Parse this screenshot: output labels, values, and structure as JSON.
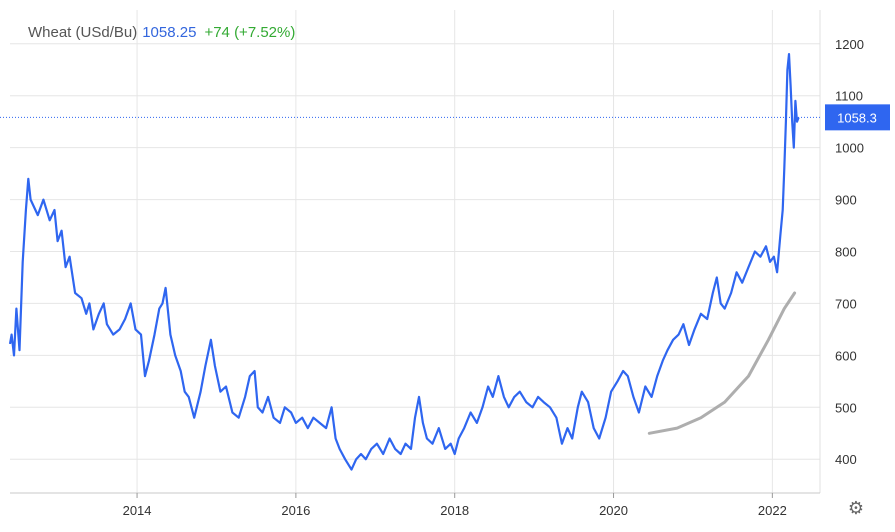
{
  "header": {
    "symbol": "Wheat (USd/Bu)",
    "last": "1058.25",
    "change": "+74 (+7.52%)"
  },
  "colors": {
    "line": "#2f66f0",
    "price_tag_bg": "#2f66f0",
    "trend_annotation": "#a0a0a0",
    "change_positive": "#33aa33",
    "grid": "#e6e6e6"
  },
  "icons": {
    "settings": "gear-icon"
  },
  "chart_data": {
    "type": "line",
    "title": "",
    "xlabel": "",
    "ylabel": "",
    "x_ticks": [
      "2014",
      "2016",
      "2018",
      "2020",
      "2022"
    ],
    "y_ticks": [
      400,
      500,
      600,
      700,
      800,
      900,
      1000,
      1100,
      1200
    ],
    "xlim": [
      2012.4,
      2022.6
    ],
    "ylim": [
      335,
      1265
    ],
    "grid": true,
    "y_axis_side": "right",
    "price_tag": "1058.3",
    "price_line_value": 1058.3,
    "series": [
      {
        "points": [
          [
            2012.4,
            622
          ],
          [
            2012.42,
            640
          ],
          [
            2012.45,
            600
          ],
          [
            2012.48,
            690
          ],
          [
            2012.52,
            610
          ],
          [
            2012.56,
            780
          ],
          [
            2012.6,
            880
          ],
          [
            2012.63,
            940
          ],
          [
            2012.66,
            900
          ],
          [
            2012.75,
            870
          ],
          [
            2012.82,
            900
          ],
          [
            2012.9,
            860
          ],
          [
            2012.96,
            880
          ],
          [
            2013.0,
            820
          ],
          [
            2013.05,
            840
          ],
          [
            2013.1,
            770
          ],
          [
            2013.15,
            790
          ],
          [
            2013.22,
            720
          ],
          [
            2013.3,
            710
          ],
          [
            2013.36,
            680
          ],
          [
            2013.4,
            700
          ],
          [
            2013.45,
            650
          ],
          [
            2013.52,
            680
          ],
          [
            2013.58,
            700
          ],
          [
            2013.62,
            660
          ],
          [
            2013.7,
            640
          ],
          [
            2013.78,
            650
          ],
          [
            2013.85,
            670
          ],
          [
            2013.92,
            700
          ],
          [
            2013.98,
            650
          ],
          [
            2014.05,
            640
          ],
          [
            2014.1,
            560
          ],
          [
            2014.15,
            590
          ],
          [
            2014.22,
            640
          ],
          [
            2014.28,
            690
          ],
          [
            2014.32,
            700
          ],
          [
            2014.36,
            730
          ],
          [
            2014.42,
            640
          ],
          [
            2014.48,
            600
          ],
          [
            2014.55,
            570
          ],
          [
            2014.6,
            530
          ],
          [
            2014.65,
            520
          ],
          [
            2014.72,
            480
          ],
          [
            2014.8,
            530
          ],
          [
            2014.86,
            580
          ],
          [
            2014.93,
            630
          ],
          [
            2014.98,
            580
          ],
          [
            2015.05,
            530
          ],
          [
            2015.12,
            540
          ],
          [
            2015.2,
            490
          ],
          [
            2015.28,
            480
          ],
          [
            2015.36,
            520
          ],
          [
            2015.42,
            560
          ],
          [
            2015.48,
            570
          ],
          [
            2015.52,
            500
          ],
          [
            2015.58,
            490
          ],
          [
            2015.65,
            520
          ],
          [
            2015.72,
            480
          ],
          [
            2015.8,
            470
          ],
          [
            2015.86,
            500
          ],
          [
            2015.94,
            490
          ],
          [
            2016.0,
            470
          ],
          [
            2016.08,
            480
          ],
          [
            2016.15,
            460
          ],
          [
            2016.22,
            480
          ],
          [
            2016.3,
            470
          ],
          [
            2016.38,
            460
          ],
          [
            2016.45,
            500
          ],
          [
            2016.5,
            440
          ],
          [
            2016.55,
            420
          ],
          [
            2016.62,
            400
          ],
          [
            2016.7,
            380
          ],
          [
            2016.76,
            400
          ],
          [
            2016.82,
            410
          ],
          [
            2016.88,
            400
          ],
          [
            2016.95,
            420
          ],
          [
            2017.02,
            430
          ],
          [
            2017.1,
            410
          ],
          [
            2017.18,
            440
          ],
          [
            2017.25,
            420
          ],
          [
            2017.32,
            410
          ],
          [
            2017.38,
            430
          ],
          [
            2017.45,
            420
          ],
          [
            2017.5,
            480
          ],
          [
            2017.55,
            520
          ],
          [
            2017.6,
            470
          ],
          [
            2017.65,
            440
          ],
          [
            2017.72,
            430
          ],
          [
            2017.8,
            460
          ],
          [
            2017.88,
            420
          ],
          [
            2017.95,
            430
          ],
          [
            2018.0,
            410
          ],
          [
            2018.05,
            440
          ],
          [
            2018.12,
            460
          ],
          [
            2018.2,
            490
          ],
          [
            2018.28,
            470
          ],
          [
            2018.35,
            500
          ],
          [
            2018.42,
            540
          ],
          [
            2018.48,
            520
          ],
          [
            2018.55,
            560
          ],
          [
            2018.62,
            520
          ],
          [
            2018.68,
            500
          ],
          [
            2018.75,
            520
          ],
          [
            2018.82,
            530
          ],
          [
            2018.9,
            510
          ],
          [
            2018.98,
            500
          ],
          [
            2019.05,
            520
          ],
          [
            2019.12,
            510
          ],
          [
            2019.2,
            500
          ],
          [
            2019.28,
            480
          ],
          [
            2019.35,
            430
          ],
          [
            2019.42,
            460
          ],
          [
            2019.48,
            440
          ],
          [
            2019.55,
            500
          ],
          [
            2019.6,
            530
          ],
          [
            2019.68,
            510
          ],
          [
            2019.75,
            460
          ],
          [
            2019.82,
            440
          ],
          [
            2019.9,
            480
          ],
          [
            2019.97,
            530
          ],
          [
            2020.05,
            550
          ],
          [
            2020.12,
            570
          ],
          [
            2020.18,
            560
          ],
          [
            2020.25,
            520
          ],
          [
            2020.32,
            490
          ],
          [
            2020.4,
            540
          ],
          [
            2020.48,
            520
          ],
          [
            2020.55,
            560
          ],
          [
            2020.62,
            590
          ],
          [
            2020.68,
            610
          ],
          [
            2020.75,
            630
          ],
          [
            2020.82,
            640
          ],
          [
            2020.88,
            660
          ],
          [
            2020.95,
            620
          ],
          [
            2021.02,
            650
          ],
          [
            2021.1,
            680
          ],
          [
            2021.18,
            670
          ],
          [
            2021.25,
            720
          ],
          [
            2021.3,
            750
          ],
          [
            2021.35,
            700
          ],
          [
            2021.4,
            690
          ],
          [
            2021.48,
            720
          ],
          [
            2021.55,
            760
          ],
          [
            2021.62,
            740
          ],
          [
            2021.7,
            770
          ],
          [
            2021.78,
            800
          ],
          [
            2021.85,
            790
          ],
          [
            2021.92,
            810
          ],
          [
            2021.97,
            780
          ],
          [
            2022.02,
            790
          ],
          [
            2022.06,
            760
          ],
          [
            2022.1,
            830
          ],
          [
            2022.13,
            880
          ],
          [
            2022.15,
            960
          ],
          [
            2022.17,
            1050
          ],
          [
            2022.19,
            1150
          ],
          [
            2022.21,
            1180
          ],
          [
            2022.23,
            1120
          ],
          [
            2022.25,
            1050
          ],
          [
            2022.27,
            1000
          ],
          [
            2022.29,
            1090
          ],
          [
            2022.31,
            1050
          ],
          [
            2022.33,
            1058
          ]
        ]
      }
    ]
  },
  "trend_annotation": {
    "points": [
      [
        2020.45,
        450
      ],
      [
        2020.8,
        460
      ],
      [
        2021.1,
        480
      ],
      [
        2021.4,
        510
      ],
      [
        2021.7,
        560
      ],
      [
        2021.95,
        630
      ],
      [
        2022.15,
        690
      ],
      [
        2022.28,
        720
      ]
    ]
  }
}
